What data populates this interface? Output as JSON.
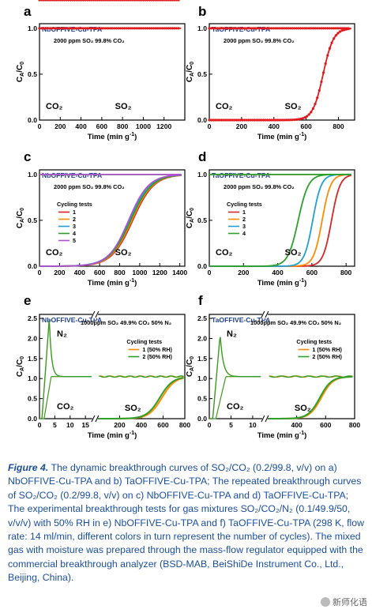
{
  "charts": [
    {
      "panel": "a",
      "sample": "NbOFFIVE-Cu-TPA",
      "gas_label": "2000 ppm SO₂ 99.8% CO₂",
      "co2": "CO₂",
      "so2": "SO₂",
      "xlabel": "Time (min g⁻¹)",
      "ylabel": "C_A/C_0",
      "xlim": [
        0,
        1400
      ],
      "xticks": [
        0,
        200,
        400,
        600,
        800,
        1000,
        1200
      ],
      "ylim": [
        0,
        1.05
      ],
      "yticks": [
        0.0,
        0.5,
        1.0
      ],
      "type": "line",
      "series": [
        {
          "color": "#e31a1c",
          "co2": {
            "t": [
              0,
              0
            ],
            "k": 0
          },
          "so2": {
            "t": [
              920,
              920
            ],
            "k": 110
          }
        }
      ]
    },
    {
      "panel": "b",
      "sample": "TaOFFIVE-Cu-TPA",
      "gas_label": "2000 ppm SO₂ 99.8% CO₂",
      "co2": "CO₂",
      "so2": "SO₂",
      "xlabel": "Time (min g⁻¹)",
      "ylabel": "C_A/C_0",
      "xlim": [
        0,
        900
      ],
      "xticks": [
        0,
        200,
        400,
        600,
        800
      ],
      "ylim": [
        0,
        1.05
      ],
      "yticks": [
        0.0,
        0.5,
        1.0
      ],
      "type": "line",
      "series": [
        {
          "color": "#e31a1c",
          "co2": {
            "t": 0,
            "k": 0
          },
          "so2": {
            "t": 705,
            "k": 32
          }
        }
      ]
    },
    {
      "panel": "c",
      "sample": "NbOFFIVE-Cu-TPA",
      "gas_label": "2000 ppm SO₂ 99.8% CO₂",
      "co2": "CO₂",
      "so2": "SO₂",
      "xlabel": "Time (min g⁻¹)",
      "ylabel": "C_A/C_0",
      "xlim": [
        0,
        1450
      ],
      "xticks": [
        0,
        200,
        400,
        600,
        800,
        1000,
        1200,
        1400
      ],
      "ylim": [
        0,
        1.05
      ],
      "yticks": [
        0.0,
        0.5,
        1.0
      ],
      "type": "line",
      "legend_title": "Cycling tests",
      "series": [
        {
          "name": "1",
          "color": "#e31a1c",
          "so2": {
            "t": 930,
            "k": 105
          }
        },
        {
          "name": "2",
          "color": "#ff8c00",
          "so2": {
            "t": 920,
            "k": 105
          }
        },
        {
          "name": "3",
          "color": "#1f9fd4",
          "so2": {
            "t": 900,
            "k": 105
          }
        },
        {
          "name": "4",
          "color": "#2ca02c",
          "so2": {
            "t": 910,
            "k": 105
          }
        },
        {
          "name": "5",
          "color": "#b04fd4",
          "so2": {
            "t": 890,
            "k": 100
          }
        }
      ]
    },
    {
      "panel": "d",
      "sample": "TaOFFIVE-Cu-TPA",
      "gas_label": "2000 ppm SO₂ 99.8% CO₂",
      "co2": "CO₂",
      "so2": "SO₂",
      "xlabel": "Time (min g⁻¹)",
      "ylabel": "C_A/C_0",
      "xlim": [
        0,
        850
      ],
      "xticks": [
        0,
        200,
        400,
        600,
        800
      ],
      "ylim": [
        0,
        1.05
      ],
      "yticks": [
        0.0,
        0.5,
        1.0
      ],
      "type": "line",
      "legend_title": "Cycling tests",
      "series": [
        {
          "name": "1",
          "color": "#d62728",
          "so2": {
            "t": 715,
            "k": 25
          }
        },
        {
          "name": "2",
          "color": "#ff8c00",
          "so2": {
            "t": 660,
            "k": 25
          }
        },
        {
          "name": "3",
          "color": "#1f9fd4",
          "so2": {
            "t": 605,
            "k": 25
          }
        },
        {
          "name": "4",
          "color": "#2ca02c",
          "so2": {
            "t": 520,
            "k": 30
          }
        }
      ]
    },
    {
      "panel": "e",
      "sample": "NbOFFIVE-Cu-TPA",
      "gas_label": "1000ppm SO₂ 49.9% CO₂ 50% N₂",
      "co2": "CO₂",
      "so2": "SO₂",
      "n2": "N₂",
      "xlabel": "Time (min g⁻¹)",
      "ylabel": "C_A/C_0",
      "ylim": [
        0,
        2.6
      ],
      "yticks": [
        0.0,
        0.5,
        1.0,
        1.5,
        2.0,
        2.5
      ],
      "xticks_left": [
        0,
        5,
        10,
        15
      ],
      "xticks_right": [
        200,
        400,
        600,
        800
      ],
      "type": "line",
      "legend_title": "Cycling tests",
      "series": [
        {
          "name": "1 (50% RH)",
          "color": "#ff8c00",
          "so2": {
            "t": 590,
            "k": 60
          }
        },
        {
          "name": "2 (50% RH)",
          "color": "#2ca02c",
          "so2": {
            "t": 570,
            "k": 60
          }
        }
      ]
    },
    {
      "panel": "f",
      "sample": "TaOFFIVE-Cu-TPA",
      "gas_label": "1000ppm SO₂ 49.9% CO₂ 50% N₂",
      "co2": "CO₂",
      "so2": "SO₂",
      "n2": "N₂",
      "xlabel": "Time (min g⁻¹)",
      "ylabel": "C_A/C_0",
      "ylim": [
        0,
        2.6
      ],
      "yticks": [
        0.0,
        0.5,
        1.0,
        1.5,
        2.0,
        2.5
      ],
      "xticks_left": [
        0,
        5,
        10
      ],
      "xticks_right": [
        400,
        600,
        800
      ],
      "type": "line",
      "legend_title": "Cycling tests",
      "series": [
        {
          "name": "1 (50% RH)",
          "color": "#ff8c00",
          "so2": {
            "t": 570,
            "k": 40
          }
        },
        {
          "name": "2 (50% RH)",
          "color": "#2ca02c",
          "so2": {
            "t": 560,
            "k": 40
          }
        }
      ]
    }
  ],
  "caption": {
    "lead": "Figure 4.",
    "text": " The dynamic breakthrough curves of SO₂/CO₂ (0.2/99.8, v/v) on a) NbOFFIVE-Cu-TPA and b) TaOFFIVE-Cu-TPA; The repeated breakthrough curves of SO₂/CO₂ (0.2/99.8, v/v) on c) NbOFFIVE-Cu-TPA and d) TaOFFIVE-Cu-TPA; The experimental breakthrough tests for gas mixtures SO₂/CO₂/N₂ (0.1/49.9/50, v/v/v) with 50% RH in e) NbOFFIVE-Cu-TPA and f) TaOFFIVE-Cu-TPA (298 K, flow rate: 14 ml/min, different colors in turn represent the number of cycles). The mixed gas with moisture was prepared through the mass-flow regulator equipped with the commercial breakthrough analyzer (BSD-MAB, BeiShiDe Instrument Co., Ltd., Beijing, China)."
  },
  "watermark": "新师化语"
}
